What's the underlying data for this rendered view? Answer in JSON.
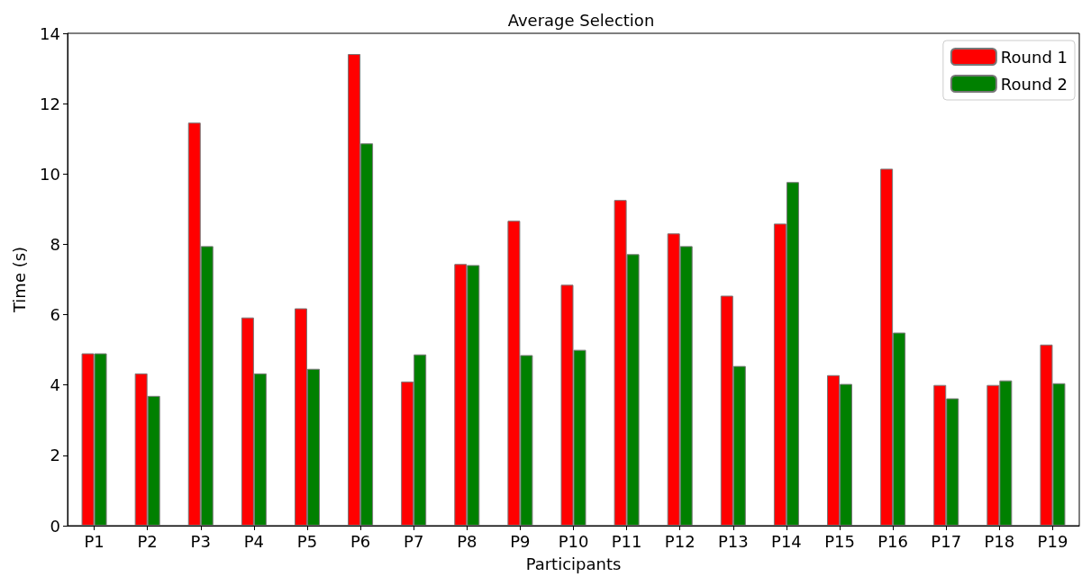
{
  "chart_data": {
    "type": "bar",
    "title": "Average Selection",
    "xlabel": "Participants",
    "ylabel": "Time (s)",
    "categories": [
      "P1",
      "P2",
      "P3",
      "P4",
      "P5",
      "P6",
      "P7",
      "P8",
      "P9",
      "P10",
      "P11",
      "P12",
      "P13",
      "P14",
      "P15",
      "P16",
      "P17",
      "P18",
      "P19"
    ],
    "series": [
      {
        "name": "Round 1",
        "color": "#ff0000",
        "values": [
          4.9,
          4.33,
          11.46,
          5.92,
          6.18,
          13.41,
          4.1,
          7.44,
          8.67,
          6.85,
          9.26,
          8.31,
          6.54,
          8.59,
          4.28,
          10.15,
          4.0,
          4.0,
          5.15
        ]
      },
      {
        "name": "Round 2",
        "color": "#008000",
        "values": [
          4.9,
          3.69,
          7.95,
          4.33,
          4.46,
          10.87,
          4.87,
          7.41,
          4.85,
          5.0,
          7.72,
          7.95,
          4.54,
          9.77,
          4.03,
          5.49,
          3.62,
          4.13,
          4.05
        ]
      }
    ],
    "ylim": [
      0,
      14
    ],
    "yticks": [
      0,
      2,
      4,
      6,
      8,
      10,
      12,
      14
    ],
    "grid": false,
    "legend": "top right"
  }
}
